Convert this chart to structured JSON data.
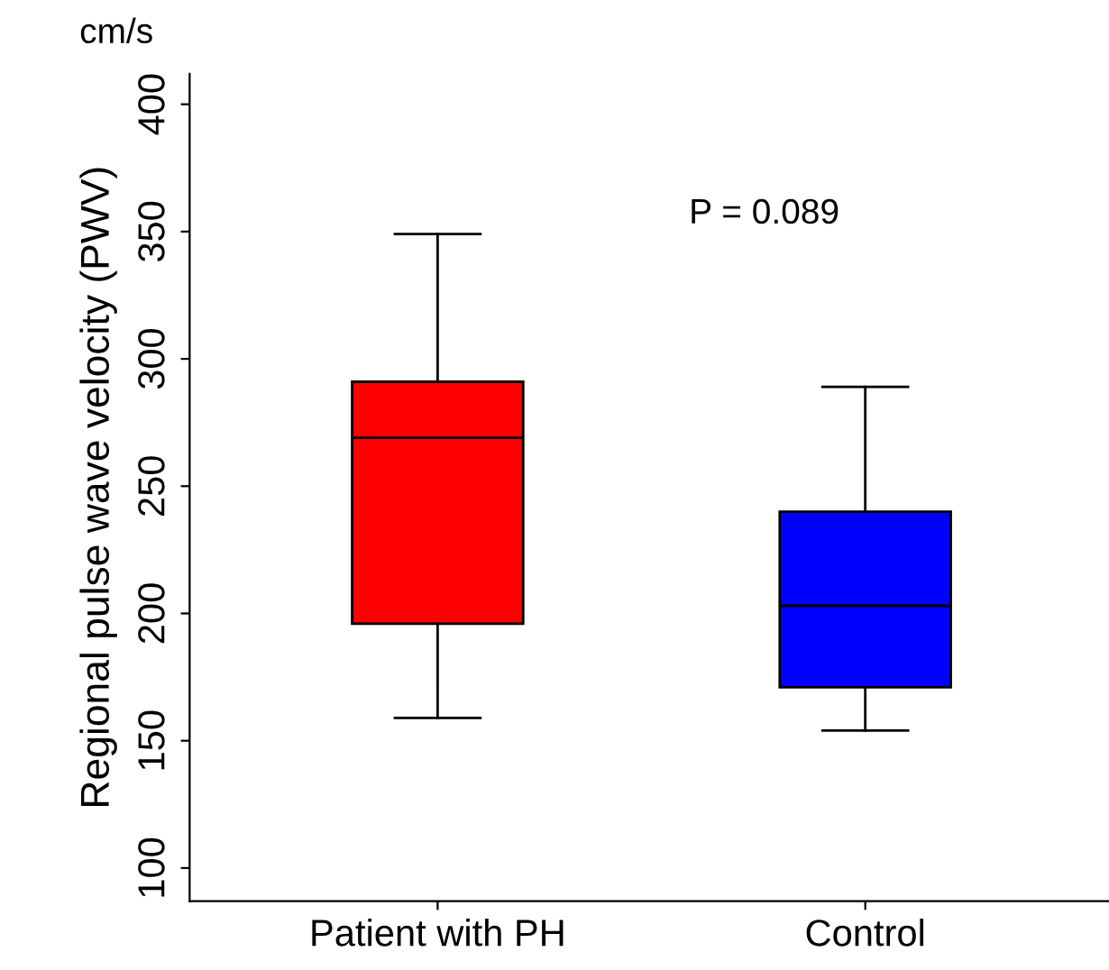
{
  "chart_data": {
    "type": "box",
    "categories": [
      "Patient with PH",
      "Control"
    ],
    "colors": [
      "#ff0000",
      "#0000ff"
    ],
    "boxes": [
      {
        "low": 159,
        "q1": 196,
        "median": 269,
        "q3": 291,
        "high": 349
      },
      {
        "low": 154,
        "q1": 171,
        "median": 203,
        "q3": 240,
        "high": 289
      }
    ],
    "ylabel": "Regional pulse wave velocity (PWV)",
    "annotations": [
      "cm/s",
      "P = 0.089"
    ],
    "ylim": [
      87,
      412
    ],
    "yticks": [
      100,
      150,
      200,
      250,
      300,
      350,
      400
    ],
    "grid": false,
    "legend": false
  }
}
